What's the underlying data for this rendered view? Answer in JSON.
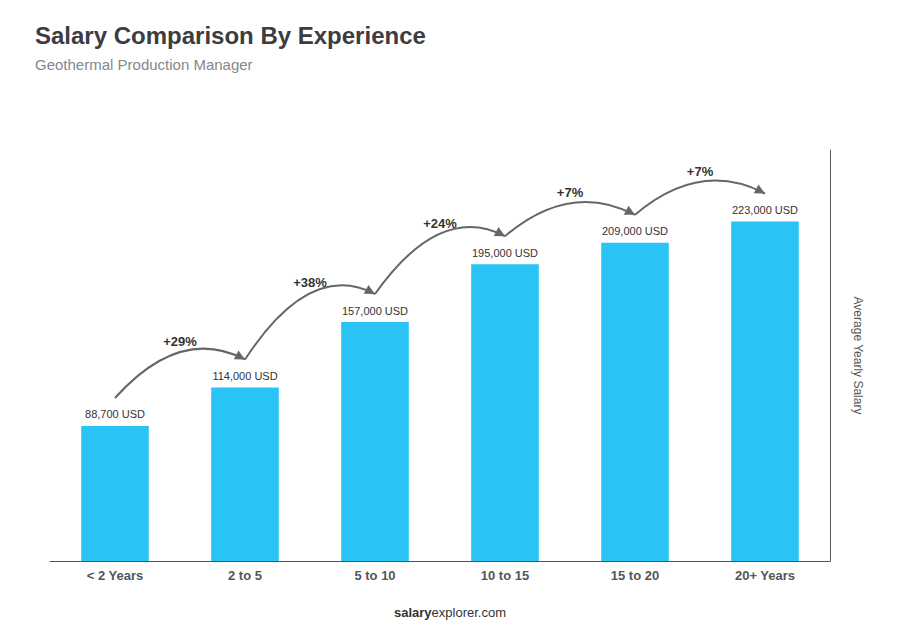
{
  "chart_data": {
    "type": "bar",
    "title": "Salary Comparison By Experience",
    "subtitle": "Geothermal Production Manager",
    "categories": [
      "< 2 Years",
      "2 to 5",
      "5 to 10",
      "10 to 15",
      "15 to 20",
      "20+ Years"
    ],
    "values": [
      88700,
      114000,
      157000,
      195000,
      209000,
      223000
    ],
    "value_labels": [
      "88,700 USD",
      "114,000 USD",
      "157,000 USD",
      "195,000 USD",
      "209,000 USD",
      "223,000 USD"
    ],
    "data_labels": true,
    "color": "#29c4f5",
    "ylabel": "Average Yearly Salary",
    "ylim": [
      0,
      270000
    ],
    "tick_labels": "x",
    "grid": false,
    "annotations": [
      "+29%",
      "+38%",
      "+24%",
      "+7%",
      "+7%"
    ],
    "footer_bold": "salary",
    "footer_normal": "explorer.com"
  }
}
